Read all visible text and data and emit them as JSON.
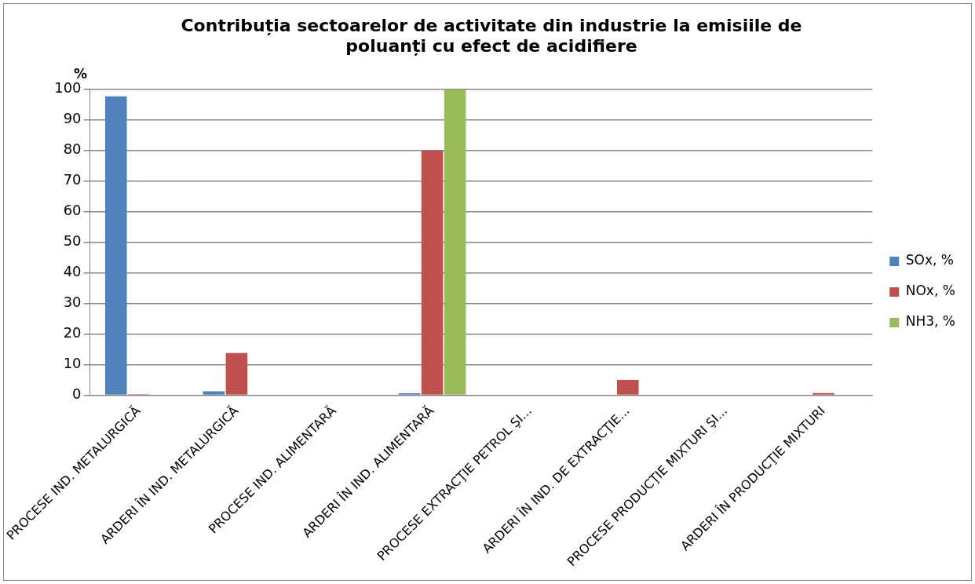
{
  "chart_data": {
    "type": "bar",
    "title": "Contribuția sectoarelor de activitate din industrie la emisiile de poluanți cu efect de acidifiere",
    "ylabel": "%",
    "categories": [
      "PROCESE IND. METALURGICĂ",
      "ARDERI ÎN IND. METALURGICĂ",
      "PROCESE IND. ALIMENTARĂ",
      "ARDERI ÎN IND. ALIMENTARĂ",
      "PROCESE EXTRACŢIE PETROL ŞI...",
      "ARDERI ÎN IND. DE EXTRACŢIE...",
      "PROCESE PRODUCŢIE MIXTURI ŞI...",
      "ARDERI ÎN PRODUCŢIE MIXTURI"
    ],
    "series": [
      {
        "name": "SOx, %",
        "color": "#4f81bd",
        "values": [
          97.7,
          1.3,
          0,
          0.6,
          0,
          0,
          0,
          0
        ]
      },
      {
        "name": "NOx, %",
        "color": "#c0504d",
        "values": [
          0.3,
          13.8,
          0,
          80,
          0,
          5,
          0,
          0.7
        ]
      },
      {
        "name": "NH3, %",
        "color": "#9bbb59",
        "values": [
          0,
          0,
          0,
          100,
          0,
          0,
          0,
          0
        ]
      }
    ],
    "ylim": [
      0,
      100
    ],
    "yticks": [
      0,
      10,
      20,
      30,
      40,
      50,
      60,
      70,
      80,
      90,
      100
    ],
    "grid": "y",
    "legend": "right"
  }
}
